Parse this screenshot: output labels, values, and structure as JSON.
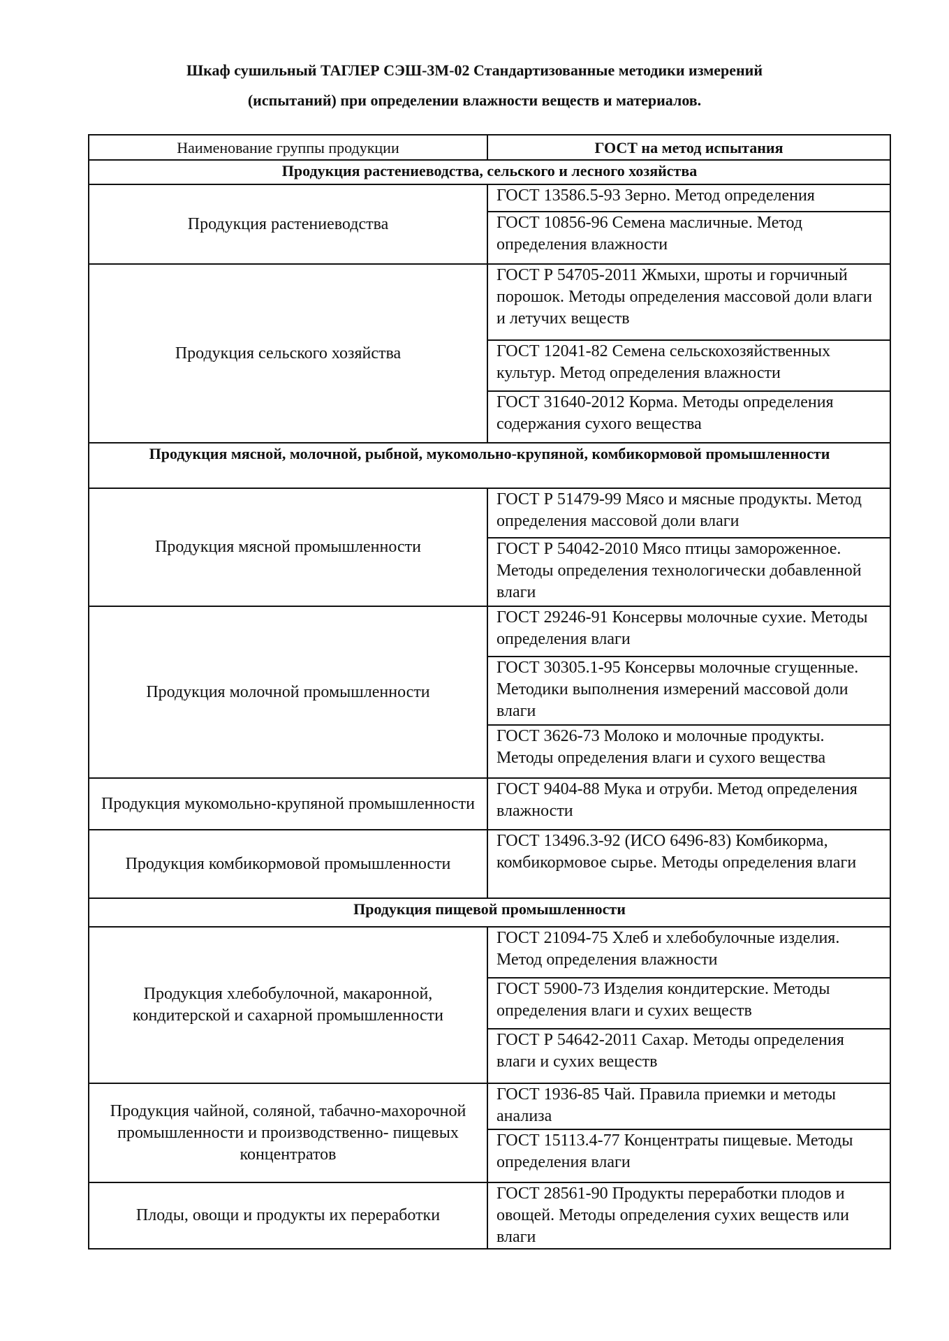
{
  "title": {
    "line1": "Шкаф сушильный ТАГЛЕР СЭШ-3М-02 Стандартизованные методики измерений",
    "line2": "(испытаний) при определении влажности веществ и материалов."
  },
  "table": {
    "headers": [
      "Наименование группы продукции",
      "ГОСТ на метод испытания"
    ],
    "sections": [
      {
        "title": "Продукция растениеводства, сельского и лесного хозяйства",
        "groups": [
          {
            "name": "Продукция растениеводства",
            "gosts": [
              "ГОСТ 13586.5-93 Зерно. Метод определения",
              "ГОСТ 10856-96 Семена масличные. Метод определения влажности"
            ]
          },
          {
            "name": "Продукция сельского хозяйства",
            "gosts": [
              "ГОСТ Р 54705-2011 Жмыхи, шроты и горчичный порошок. Методы определения массовой доли влаги и летучих веществ",
              "ГОСТ 12041-82 Семена сельскохозяйственных культур. Метод определения влажности",
              "ГОСТ 31640-2012 Корма. Методы определения содержания сухого вещества"
            ]
          }
        ]
      },
      {
        "title": "Продукция мясной, молочной, рыбной, мукомольно-крупяной, комбикормовой промышленности",
        "groups": [
          {
            "name": "Продукция мясной промышленности",
            "gosts": [
              "ГОСТ Р 51479-99 Мясо и мясные продукты. Метод определения массовой доли влаги",
              "ГОСТ Р 54042-2010 Мясо птицы замороженное. Методы определения технологически добавленной влаги"
            ]
          },
          {
            "name": "Продукция молочной промышленности",
            "gosts": [
              "ГОСТ 29246-91 Консервы молочные сухие. Методы определения влаги",
              "ГОСТ 30305.1-95 Консервы молочные сгущенные. Методики выполнения измерений массовой доли влаги",
              "ГОСТ 3626-73 Молоко и молочные продукты. Методы определения влаги и сухого вещества"
            ]
          },
          {
            "name": "Продукция мукомольно-крупяной промышленности",
            "gosts": [
              "ГОСТ 9404-88 Мука и отруби. Метод определения влажности"
            ]
          },
          {
            "name": "Продукция комбикормовой промышленности",
            "gosts": [
              "ГОСТ 13496.3-92 (ИСО 6496-83) Комбикорма, комбикормовое сырье. Методы определения влаги"
            ]
          }
        ]
      },
      {
        "title": "Продукция пищевой промышленности",
        "groups": [
          {
            "name": "Продукция хлебобулочной, макаронной, кондитерской и сахарной промышленности",
            "gosts": [
              "ГОСТ 21094-75 Хлеб и хлебобулочные изделия. Метод определения влажности",
              "ГОСТ 5900-73 Изделия кондитерские. Методы определения влаги и сухих веществ",
              "ГОСТ Р 54642-2011 Сахар. Методы определения влаги и сухих веществ"
            ]
          },
          {
            "name": "Продукция чайной, соляной, табачно-махорочной промышленности и производственно- пищевых концентратов",
            "gosts": [
              "ГОСТ 1936-85 Чай. Правила приемки и методы анализа",
              "ГОСТ 15113.4-77 Концентраты пищевые. Методы определения влаги"
            ]
          },
          {
            "name": "Плоды, овощи и продукты их переработки",
            "gosts": [
              "ГОСТ 28561-90 Продукты переработки плодов и овощей. Методы определения сухих веществ или влаги"
            ]
          }
        ]
      }
    ]
  }
}
